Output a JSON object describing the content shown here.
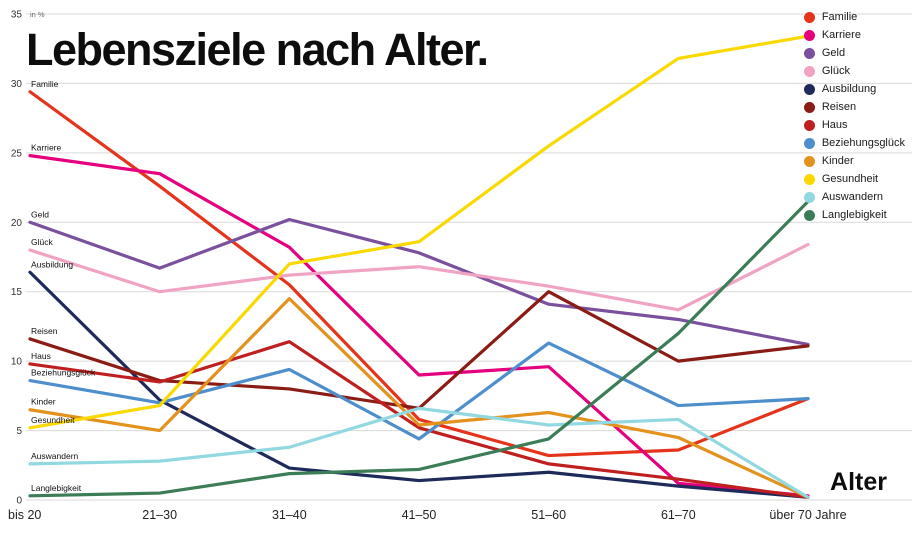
{
  "chart_data": {
    "type": "line",
    "title": "Lebensziele nach Alter.",
    "xlabel": "Alter",
    "ylabel": "in %",
    "ylim": [
      0,
      35
    ],
    "yticks": [
      0,
      5,
      10,
      15,
      20,
      25,
      30,
      35
    ],
    "grid": "horizontal",
    "legend_position": "top-right",
    "categories": [
      "bis 20",
      "21–30",
      "31–40",
      "41–50",
      "51–60",
      "61–70",
      "über 70 Jahre"
    ],
    "series": [
      {
        "name": "Familie",
        "color": "#e5341b",
        "values": [
          29.4,
          22.6,
          15.5,
          5.8,
          3.2,
          3.6,
          7.3
        ]
      },
      {
        "name": "Karriere",
        "color": "#e5007d",
        "values": [
          24.8,
          23.5,
          18.2,
          9.0,
          9.6,
          1.2,
          0.3
        ]
      },
      {
        "name": "Geld",
        "color": "#7b519d",
        "values": [
          20.0,
          16.7,
          20.2,
          17.8,
          14.1,
          13.0,
          11.2
        ]
      },
      {
        "name": "Glück",
        "color": "#f0a3c3",
        "values": [
          18.0,
          15.0,
          16.2,
          16.8,
          15.4,
          13.7,
          18.4
        ]
      },
      {
        "name": "Ausbildung",
        "color": "#1e2a5a",
        "values": [
          16.4,
          7.2,
          2.3,
          1.4,
          2.0,
          1.0,
          0.2
        ]
      },
      {
        "name": "Reisen",
        "color": "#8a1c15",
        "values": [
          11.6,
          8.6,
          8.0,
          6.6,
          15.0,
          10.0,
          11.1
        ]
      },
      {
        "name": "Haus",
        "color": "#c01f1f",
        "values": [
          9.8,
          8.5,
          11.4,
          5.2,
          2.6,
          1.5,
          0.2
        ]
      },
      {
        "name": "Beziehungsglück",
        "color": "#4e8ecb",
        "values": [
          8.6,
          7.0,
          9.4,
          4.4,
          11.3,
          6.8,
          7.3
        ]
      },
      {
        "name": "Kinder",
        "color": "#e3921e",
        "values": [
          6.5,
          5.0,
          14.5,
          5.4,
          6.3,
          4.5,
          0.2
        ]
      },
      {
        "name": "Gesundheit",
        "color": "#f9d900",
        "values": [
          5.2,
          6.8,
          17.0,
          18.6,
          25.5,
          31.8,
          33.4
        ]
      },
      {
        "name": "Auswandern",
        "color": "#92d8e0",
        "values": [
          2.6,
          2.8,
          3.8,
          6.6,
          5.4,
          5.8,
          0.2
        ]
      },
      {
        "name": "Langlebigkeit",
        "color": "#3c7d57",
        "values": [
          0.3,
          0.5,
          1.9,
          2.2,
          4.4,
          12.0,
          21.5
        ]
      }
    ]
  }
}
